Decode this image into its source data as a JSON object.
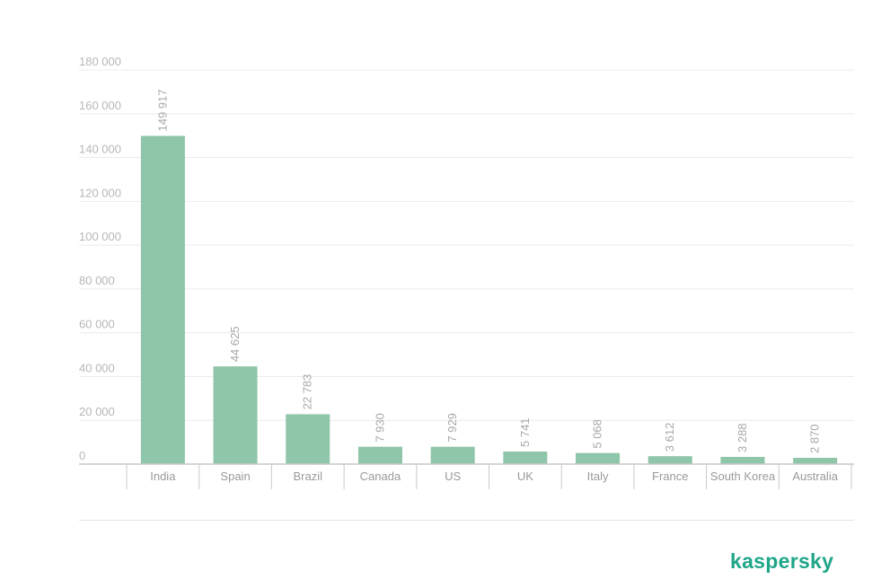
{
  "chart_data": {
    "type": "bar",
    "categories": [
      "India",
      "Spain",
      "Brazil",
      "Canada",
      "US",
      "UK",
      "Italy",
      "France",
      "South Korea",
      "Australia"
    ],
    "values": [
      149917,
      44625,
      22783,
      7930,
      7929,
      5741,
      5068,
      3612,
      3288,
      2870
    ],
    "value_labels": [
      "149 917",
      "44 625",
      "22 783",
      "7 930",
      "7 929",
      "5 741",
      "5 068",
      "3 612",
      "3 288",
      "2 870"
    ],
    "y_ticks": [
      0,
      20000,
      40000,
      60000,
      80000,
      100000,
      120000,
      140000,
      160000,
      180000
    ],
    "y_tick_labels": [
      "0",
      "20 000",
      "40 000",
      "60 000",
      "80 000",
      "100 000",
      "120 000",
      "140 000",
      "160 000",
      "180 000"
    ],
    "ylim": [
      0,
      180000
    ],
    "title": "",
    "xlabel": "",
    "ylabel": "",
    "grid": true,
    "legend": "none"
  },
  "brand": {
    "name": "kaspersky"
  },
  "colors": {
    "bar": "#8fc5a8",
    "brand": "#1fa689",
    "grid": "#ececec",
    "axis": "#c9c9c9"
  }
}
